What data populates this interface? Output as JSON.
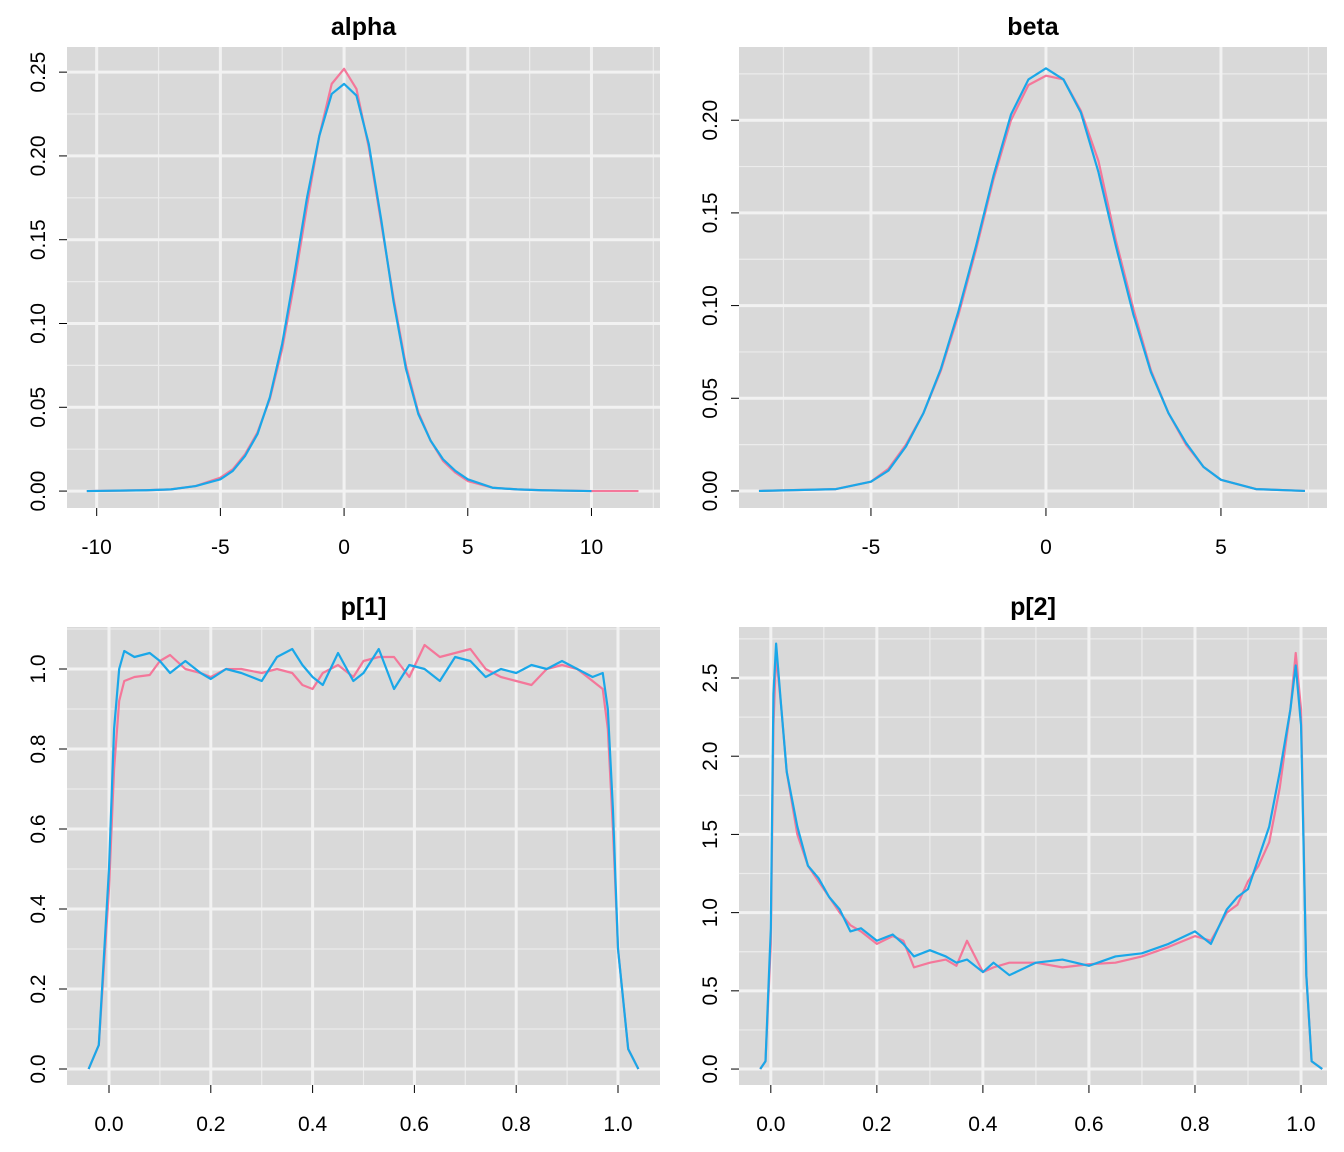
{
  "chart_data": [
    {
      "type": "line",
      "title": "alpha",
      "x": [
        -10.4,
        -8,
        -7,
        -6,
        -5,
        -4.5,
        -4,
        -3.5,
        -3,
        -2.5,
        -2,
        -1.5,
        -1,
        -0.5,
        0,
        0.5,
        1,
        1.5,
        2,
        2.5,
        3,
        3.5,
        4,
        4.5,
        5,
        6,
        7,
        8,
        10,
        11.9
      ],
      "series": [
        {
          "color": "#f4779a",
          "values": [
            0,
            0.0005,
            0.001,
            0.003,
            0.008,
            0.013,
            0.022,
            0.035,
            0.055,
            0.085,
            0.125,
            0.17,
            0.212,
            0.243,
            0.252,
            0.24,
            0.205,
            0.16,
            0.115,
            0.075,
            0.047,
            0.03,
            0.018,
            0.011,
            0.006,
            0.002,
            0.001,
            0.0005,
            0,
            0
          ]
        },
        {
          "color": "#1aa7e8",
          "values": [
            0,
            0.0005,
            0.001,
            0.003,
            0.007,
            0.012,
            0.021,
            0.034,
            0.056,
            0.088,
            0.13,
            0.175,
            0.212,
            0.237,
            0.243,
            0.236,
            0.207,
            0.162,
            0.113,
            0.073,
            0.046,
            0.03,
            0.019,
            0.012,
            0.007,
            0.002,
            0.001,
            0.0005,
            0,
            null
          ]
        }
      ],
      "xlim": [
        -11.2,
        12.77
      ],
      "xticks": [
        -10,
        -5,
        0,
        5,
        10
      ],
      "ylim": [
        -0.0101,
        0.265
      ],
      "yticks": [
        {
          "value": 0,
          "label": "0.00"
        },
        {
          "value": 0.05,
          "label": "0.05"
        },
        {
          "value": 0.1,
          "label": "0.10"
        },
        {
          "value": 0.15,
          "label": "0.15"
        },
        {
          "value": 0.2,
          "label": "0.20"
        },
        {
          "value": 0.25,
          "label": "0.25"
        }
      ],
      "grid": true
    },
    {
      "type": "line",
      "title": "beta",
      "x": [
        -8.2,
        -6,
        -5,
        -4.5,
        -4,
        -3.5,
        -3,
        -2.5,
        -2,
        -1.5,
        -1,
        -0.5,
        0,
        0.5,
        1,
        1.5,
        2,
        2.5,
        3,
        3.5,
        4,
        4.5,
        5,
        6,
        7.4
      ],
      "series": [
        {
          "color": "#f4779a",
          "values": [
            0,
            0.001,
            0.005,
            0.012,
            0.025,
            0.042,
            0.065,
            0.095,
            0.13,
            0.168,
            0.2,
            0.219,
            0.224,
            0.222,
            0.205,
            0.178,
            0.135,
            0.098,
            0.065,
            0.042,
            0.025,
            0.013,
            0.006,
            0.001,
            0
          ]
        },
        {
          "color": "#1aa7e8",
          "values": [
            0,
            0.001,
            0.005,
            0.011,
            0.024,
            0.042,
            0.066,
            0.097,
            0.132,
            0.17,
            0.203,
            0.222,
            0.228,
            0.222,
            0.204,
            0.172,
            0.132,
            0.095,
            0.064,
            0.042,
            0.026,
            0.013,
            0.006,
            0.001,
            0
          ]
        }
      ],
      "xlim": [
        -8.77,
        8.03
      ],
      "xticks": [
        -5,
        0,
        5
      ],
      "ylim": [
        -0.0092,
        0.2395
      ],
      "yticks": [
        {
          "value": 0,
          "label": "0.00"
        },
        {
          "value": 0.05,
          "label": "0.05"
        },
        {
          "value": 0.1,
          "label": "0.10"
        },
        {
          "value": 0.15,
          "label": "0.15"
        },
        {
          "value": 0.2,
          "label": "0.20"
        }
      ],
      "grid": true
    },
    {
      "type": "line",
      "title": "p[1]",
      "x": [
        -0.04,
        -0.02,
        0,
        0.01,
        0.02,
        0.03,
        0.05,
        0.08,
        0.1,
        0.12,
        0.15,
        0.18,
        0.2,
        0.23,
        0.26,
        0.3,
        0.33,
        0.36,
        0.38,
        0.4,
        0.42,
        0.45,
        0.48,
        0.5,
        0.53,
        0.56,
        0.59,
        0.62,
        0.65,
        0.68,
        0.71,
        0.74,
        0.77,
        0.8,
        0.83,
        0.86,
        0.89,
        0.92,
        0.95,
        0.97,
        0.98,
        0.99,
        1.0,
        1.02,
        1.04
      ],
      "series": [
        {
          "color": "#f4779a",
          "values": [
            0,
            0.06,
            0.45,
            0.75,
            0.92,
            0.97,
            0.98,
            0.985,
            1.02,
            1.035,
            1.0,
            0.99,
            0.98,
            1.0,
            1.0,
            0.99,
            1.0,
            0.99,
            0.96,
            0.95,
            0.99,
            1.01,
            0.98,
            1.02,
            1.03,
            1.03,
            0.98,
            1.06,
            1.03,
            1.04,
            1.05,
            1.0,
            0.98,
            0.97,
            0.96,
            1.0,
            1.01,
            1.0,
            0.97,
            0.95,
            0.85,
            0.6,
            0.3,
            0.05,
            0
          ]
        },
        {
          "color": "#1aa7e8",
          "values": [
            0,
            0.06,
            0.5,
            0.85,
            1.0,
            1.045,
            1.03,
            1.04,
            1.02,
            0.99,
            1.02,
            0.99,
            0.975,
            1.0,
            0.99,
            0.97,
            1.03,
            1.05,
            1.01,
            0.98,
            0.96,
            1.04,
            0.97,
            0.99,
            1.05,
            0.95,
            1.01,
            1.0,
            0.97,
            1.03,
            1.02,
            0.98,
            1.0,
            0.99,
            1.01,
            1.0,
            1.02,
            1.0,
            0.98,
            0.99,
            0.9,
            0.65,
            0.3,
            0.05,
            0
          ]
        }
      ],
      "xlim": [
        -0.0825,
        1.0825
      ],
      "xticks": [
        {
          "value": 0,
          "label": "0.0"
        },
        {
          "value": 0.2,
          "label": "0.2"
        },
        {
          "value": 0.4,
          "label": "0.4"
        },
        {
          "value": 0.6,
          "label": "0.6"
        },
        {
          "value": 0.8,
          "label": "0.8"
        },
        {
          "value": 1,
          "label": "1.0"
        }
      ],
      "ylim": [
        -0.04,
        1.105
      ],
      "yticks": [
        {
          "value": 0,
          "label": "0.0"
        },
        {
          "value": 0.2,
          "label": "0.2"
        },
        {
          "value": 0.4,
          "label": "0.4"
        },
        {
          "value": 0.6,
          "label": "0.6"
        },
        {
          "value": 0.8,
          "label": "0.8"
        },
        {
          "value": 1,
          "label": "1.0"
        }
      ],
      "grid": true
    },
    {
      "type": "line",
      "title": "p[2]",
      "x": [
        -0.02,
        -0.01,
        0,
        0.005,
        0.01,
        0.02,
        0.03,
        0.05,
        0.07,
        0.09,
        0.11,
        0.13,
        0.15,
        0.17,
        0.2,
        0.23,
        0.25,
        0.27,
        0.3,
        0.33,
        0.35,
        0.37,
        0.4,
        0.42,
        0.45,
        0.5,
        0.55,
        0.6,
        0.65,
        0.7,
        0.75,
        0.8,
        0.83,
        0.86,
        0.88,
        0.9,
        0.92,
        0.94,
        0.96,
        0.98,
        0.99,
        1.0,
        1.01,
        1.02,
        1.04
      ],
      "series": [
        {
          "color": "#f4779a",
          "values": [
            0,
            0.05,
            0.8,
            2.2,
            2.65,
            2.3,
            1.9,
            1.5,
            1.3,
            1.2,
            1.1,
            1.0,
            0.92,
            0.88,
            0.8,
            0.85,
            0.82,
            0.65,
            0.68,
            0.7,
            0.66,
            0.82,
            0.62,
            0.65,
            0.68,
            0.68,
            0.65,
            0.67,
            0.68,
            0.72,
            0.78,
            0.85,
            0.82,
            1.0,
            1.05,
            1.2,
            1.3,
            1.45,
            1.8,
            2.3,
            2.66,
            2.3,
            0.6,
            0.05,
            0
          ]
        },
        {
          "color": "#1aa7e8",
          "values": [
            0,
            0.05,
            0.9,
            2.4,
            2.72,
            2.3,
            1.9,
            1.55,
            1.3,
            1.22,
            1.1,
            1.02,
            0.88,
            0.9,
            0.82,
            0.86,
            0.8,
            0.72,
            0.76,
            0.72,
            0.68,
            0.7,
            0.62,
            0.68,
            0.6,
            0.68,
            0.7,
            0.66,
            0.72,
            0.74,
            0.8,
            0.88,
            0.8,
            1.02,
            1.1,
            1.15,
            1.35,
            1.55,
            1.9,
            2.3,
            2.58,
            2.2,
            0.6,
            0.05,
            0
          ]
        }
      ],
      "xlim": [
        -0.06,
        1.049
      ],
      "xticks": [
        {
          "value": 0,
          "label": "0.0"
        },
        {
          "value": 0.2,
          "label": "0.2"
        },
        {
          "value": 0.4,
          "label": "0.4"
        },
        {
          "value": 0.6,
          "label": "0.6"
        },
        {
          "value": 0.8,
          "label": "0.8"
        },
        {
          "value": 1,
          "label": "1.0"
        }
      ],
      "ylim": [
        -0.102,
        2.826
      ],
      "yticks": [
        {
          "value": 0,
          "label": "0.0"
        },
        {
          "value": 0.5,
          "label": "0.5"
        },
        {
          "value": 1,
          "label": "1.0"
        },
        {
          "value": 1.5,
          "label": "1.5"
        },
        {
          "value": 2,
          "label": "2.0"
        },
        {
          "value": 2.5,
          "label": "2.5"
        }
      ],
      "grid": true
    }
  ]
}
